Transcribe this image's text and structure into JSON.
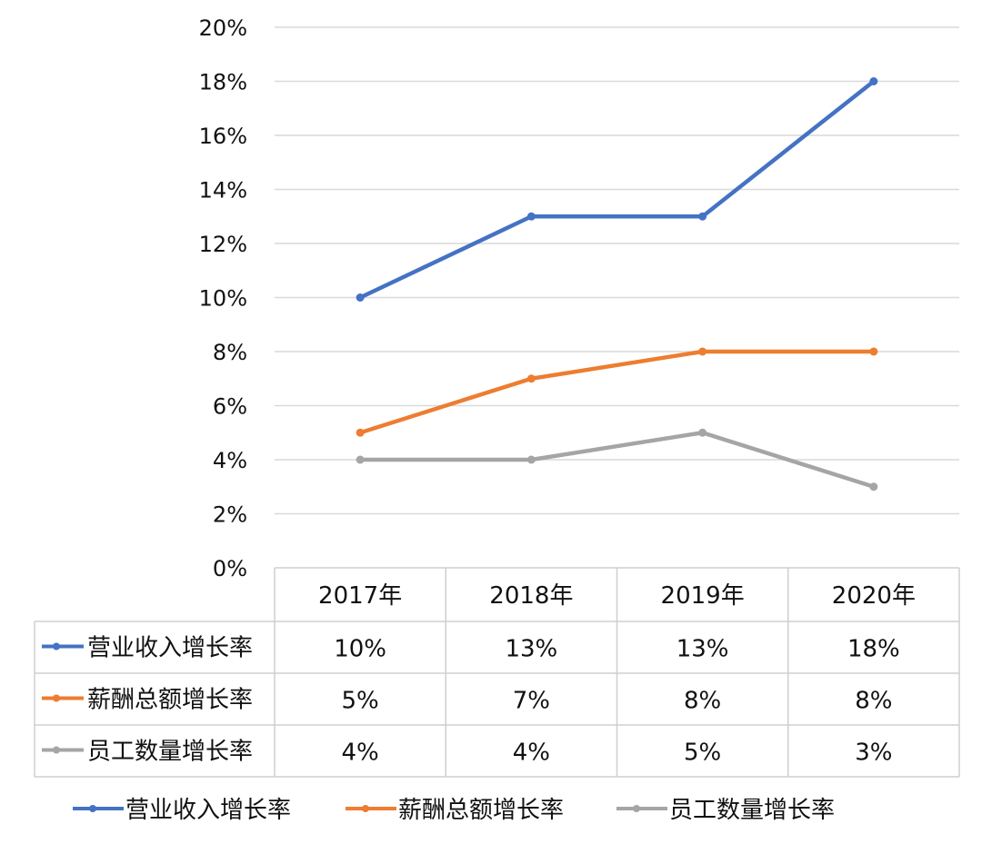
{
  "chart_data": {
    "type": "line",
    "categories": [
      "2017年",
      "2018年",
      "2019年",
      "2020年"
    ],
    "series": [
      {
        "name": "营业收入增长率",
        "values": [
          10,
          13,
          13,
          18
        ],
        "labels": [
          "10%",
          "13%",
          "13%",
          "18%"
        ],
        "color": "#4472C4"
      },
      {
        "name": "薪酬总额增长率",
        "values": [
          5,
          7,
          8,
          8
        ],
        "labels": [
          "5%",
          "7%",
          "8%",
          "8%"
        ],
        "color": "#ED7D31"
      },
      {
        "name": "员工数量增长率",
        "values": [
          4,
          4,
          5,
          3
        ],
        "labels": [
          "4%",
          "4%",
          "5%",
          "3%"
        ],
        "color": "#A5A5A5"
      }
    ],
    "y_ticks": [
      "0%",
      "2%",
      "4%",
      "6%",
      "8%",
      "10%",
      "12%",
      "14%",
      "16%",
      "18%",
      "20%"
    ],
    "ylim": [
      0,
      20
    ],
    "grid": true,
    "data_table": true,
    "legend_position": "bottom"
  }
}
